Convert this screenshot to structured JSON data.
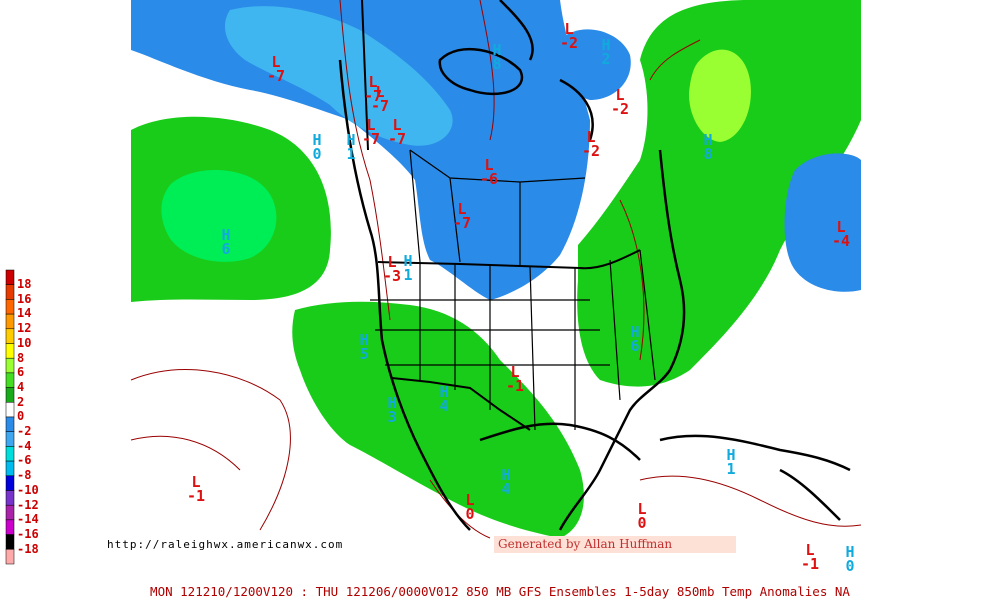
{
  "map": {
    "colors": {
      "land_fill": "#ffffff",
      "blue_anomaly": "#2b8be8",
      "light_blue_anomaly": "#3fb6f0",
      "green_anomaly": "#19cc19",
      "light_green_anomaly": "#00ee55",
      "yellow_green_anomaly": "#99ff33",
      "borders": "#000000",
      "contours": "#990000"
    },
    "legend": [
      {
        "label": "18",
        "color": "#cc0000"
      },
      {
        "label": "16",
        "color": "#e63a00"
      },
      {
        "label": "14",
        "color": "#ff6600"
      },
      {
        "label": "12",
        "color": "#ff9900"
      },
      {
        "label": "10",
        "color": "#ffcc00"
      },
      {
        "label": "8",
        "color": "#ffff00"
      },
      {
        "label": "6",
        "color": "#99ff33"
      },
      {
        "label": "4",
        "color": "#44dd22"
      },
      {
        "label": "2",
        "color": "#19aa19"
      },
      {
        "label": "0",
        "color": "#ffffff"
      },
      {
        "label": "-2",
        "color": "#2b8be8"
      },
      {
        "label": "-4",
        "color": "#3fa6f0"
      },
      {
        "label": "-6",
        "color": "#00dddd"
      },
      {
        "label": "-8",
        "color": "#00bbee"
      },
      {
        "label": "-10",
        "color": "#0000dd"
      },
      {
        "label": "-12",
        "color": "#7733cc"
      },
      {
        "label": "-14",
        "color": "#aa22aa"
      },
      {
        "label": "-16",
        "color": "#cc00cc"
      },
      {
        "label": "-18",
        "color": "#000000"
      },
      {
        "label": "",
        "color": "#ffaaaa"
      }
    ],
    "markers": [
      {
        "type": "L",
        "value": "-7"
      },
      {
        "type": "L",
        "value": "-7"
      },
      {
        "type": "L",
        "value": "-7"
      },
      {
        "type": "L",
        "value": "-7"
      },
      {
        "type": "L",
        "value": "-7"
      },
      {
        "type": "L",
        "value": "-6"
      },
      {
        "type": "L",
        "value": "-7"
      },
      {
        "type": "H",
        "value": "0"
      },
      {
        "type": "H",
        "value": "1"
      },
      {
        "type": "H",
        "value": "6"
      },
      {
        "type": "H",
        "value": "8"
      },
      {
        "type": "L",
        "value": "-4"
      },
      {
        "type": "L",
        "value": "-2"
      },
      {
        "type": "L",
        "value": "-2"
      },
      {
        "type": "L",
        "value": "-2"
      },
      {
        "type": "H",
        "value": "2"
      },
      {
        "type": "H",
        "value": "8"
      },
      {
        "type": "H",
        "value": "1"
      },
      {
        "type": "L",
        "value": "-3"
      },
      {
        "type": "H",
        "value": "5"
      },
      {
        "type": "H",
        "value": "3"
      },
      {
        "type": "H",
        "value": "4"
      },
      {
        "type": "L",
        "value": "-1"
      },
      {
        "type": "H",
        "value": "6"
      },
      {
        "type": "H",
        "value": "4"
      },
      {
        "type": "H",
        "value": "1"
      },
      {
        "type": "L",
        "value": "-1"
      },
      {
        "type": "L",
        "value": "0"
      },
      {
        "type": "L",
        "value": "0"
      },
      {
        "type": "L",
        "value": "-1"
      },
      {
        "type": "H",
        "value": "0"
      }
    ],
    "url": "http://raleighwx.americanwx.com",
    "credit": "Generated by Allan Huffman",
    "footer": "MON 121210/1200V120 : THU 121206/0000V012  850 MB GFS Ensembles 1-5day 850mb Temp Anomalies NA"
  }
}
